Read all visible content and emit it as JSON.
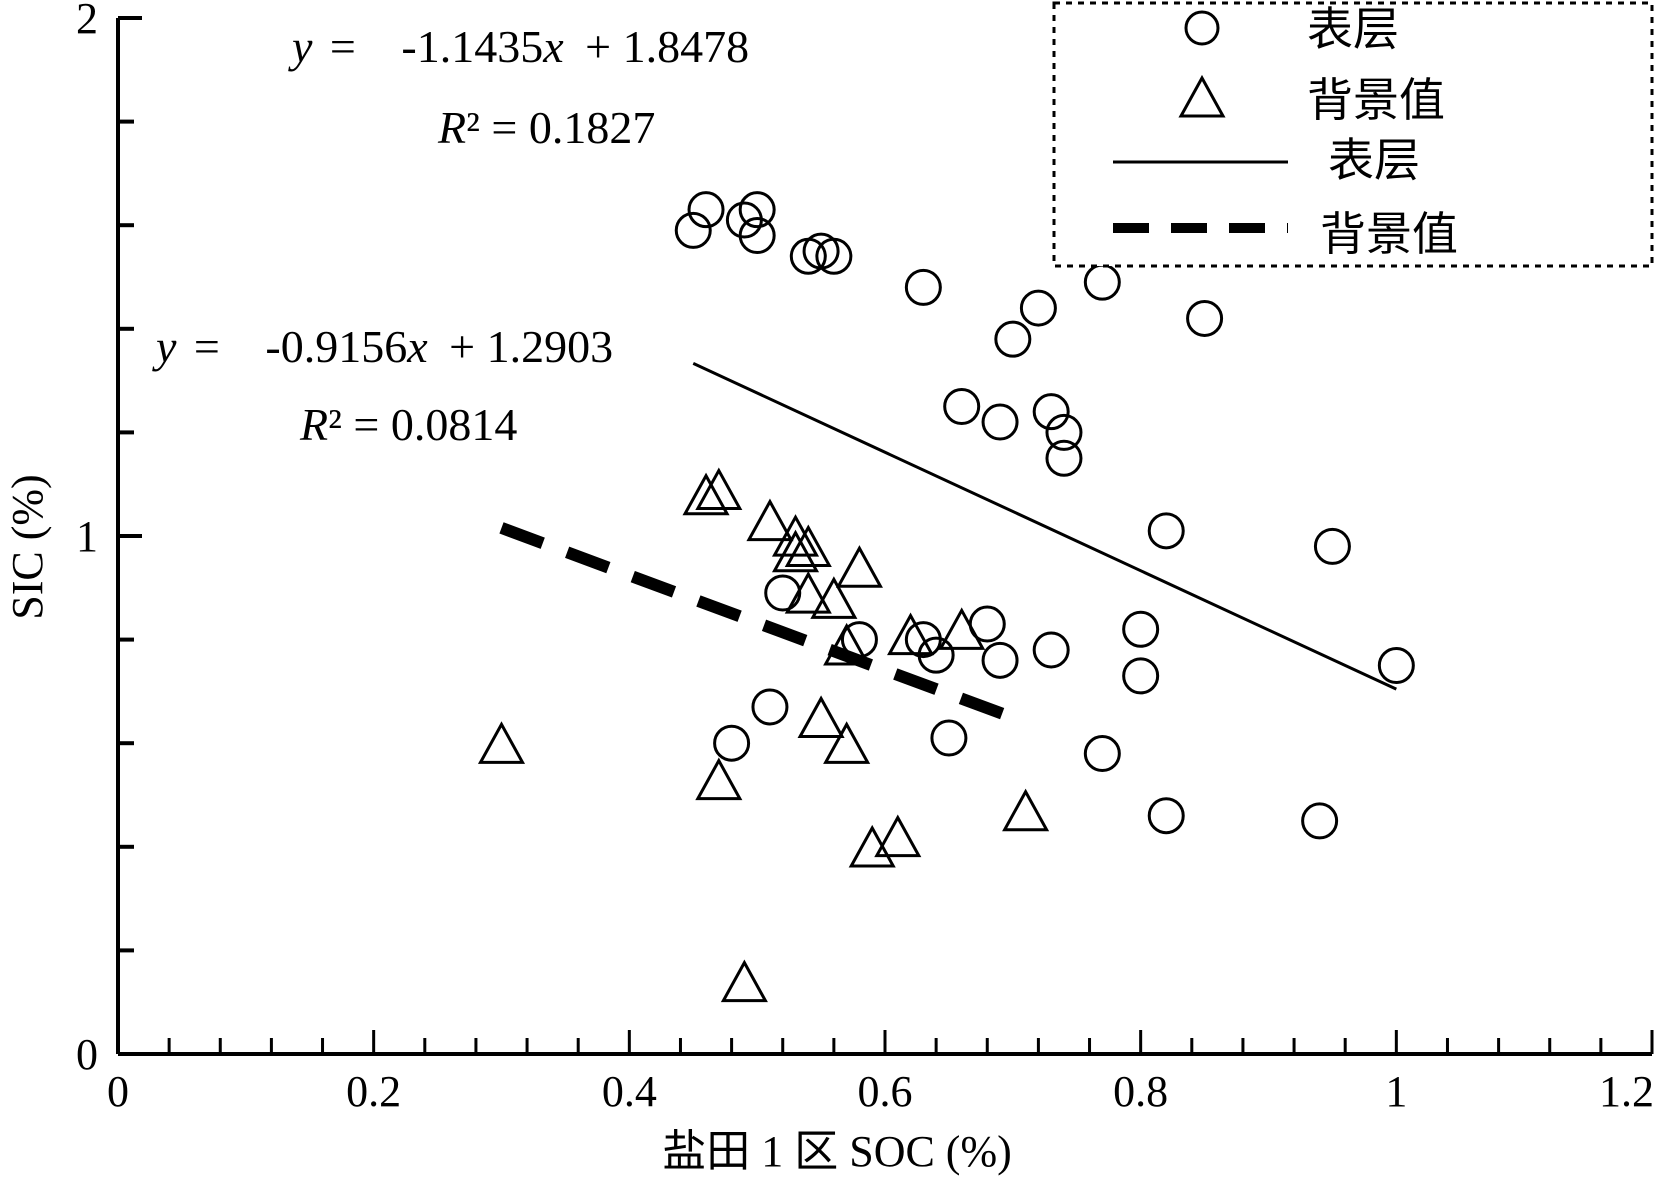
{
  "chart_data": {
    "type": "scatter",
    "xlabel": "盐田 1 区 SOC (%)",
    "ylabel": "SIC (%)",
    "xlim": [
      0,
      1.2
    ],
    "ylim": [
      0,
      2
    ],
    "x_major_ticks": [
      0,
      0.2,
      0.4,
      0.6,
      0.8,
      1,
      1.2
    ],
    "x_tick_labels": [
      "0",
      "0.2",
      "0.4",
      "0.6",
      "0.8",
      "1",
      "1.2"
    ],
    "x_minor_tick_step": 0.04,
    "y_major_ticks": [
      0,
      1,
      2
    ],
    "y_tick_labels": [
      "0",
      "1",
      "2"
    ],
    "y_minor_tick_step": 0.2,
    "grid": false,
    "legend_position": "top-right",
    "series": [
      {
        "name": "表层",
        "marker": "circle",
        "points": [
          [
            0.45,
            1.59
          ],
          [
            0.46,
            1.63
          ],
          [
            0.49,
            1.61
          ],
          [
            0.5,
            1.63
          ],
          [
            0.5,
            1.58
          ],
          [
            0.54,
            1.54
          ],
          [
            0.55,
            1.55
          ],
          [
            0.56,
            1.54
          ],
          [
            0.63,
            1.48
          ],
          [
            0.77,
            1.49
          ],
          [
            0.72,
            1.44
          ],
          [
            0.7,
            1.38
          ],
          [
            0.85,
            1.42
          ],
          [
            0.66,
            1.25
          ],
          [
            0.69,
            1.22
          ],
          [
            0.73,
            1.24
          ],
          [
            0.74,
            1.2
          ],
          [
            0.74,
            1.15
          ],
          [
            0.82,
            1.01
          ],
          [
            0.95,
            0.98
          ],
          [
            0.52,
            0.89
          ],
          [
            0.58,
            0.8
          ],
          [
            0.63,
            0.8
          ],
          [
            0.64,
            0.77
          ],
          [
            0.68,
            0.83
          ],
          [
            0.69,
            0.76
          ],
          [
            0.73,
            0.78
          ],
          [
            0.8,
            0.82
          ],
          [
            0.8,
            0.73
          ],
          [
            1.0,
            0.75
          ],
          [
            0.51,
            0.67
          ],
          [
            0.48,
            0.6
          ],
          [
            0.65,
            0.61
          ],
          [
            0.77,
            0.58
          ],
          [
            0.82,
            0.46
          ],
          [
            0.94,
            0.45
          ]
        ]
      },
      {
        "name": "背景值",
        "marker": "triangle",
        "points": [
          [
            0.46,
            1.07
          ],
          [
            0.47,
            1.08
          ],
          [
            0.51,
            1.02
          ],
          [
            0.53,
            0.99
          ],
          [
            0.54,
            0.97
          ],
          [
            0.53,
            0.96
          ],
          [
            0.54,
            0.88
          ],
          [
            0.56,
            0.87
          ],
          [
            0.58,
            0.93
          ],
          [
            0.57,
            0.78
          ],
          [
            0.62,
            0.8
          ],
          [
            0.66,
            0.81
          ],
          [
            0.55,
            0.64
          ],
          [
            0.57,
            0.59
          ],
          [
            0.3,
            0.59
          ],
          [
            0.47,
            0.52
          ],
          [
            0.71,
            0.46
          ],
          [
            0.59,
            0.39
          ],
          [
            0.61,
            0.41
          ],
          [
            0.49,
            0.13
          ]
        ]
      }
    ],
    "fits": [
      {
        "series": "表层",
        "style": "solid",
        "slope": -1.1435,
        "intercept": 1.8478,
        "x_range": [
          0.45,
          1.0
        ],
        "equation_label": {
          "y": "y",
          "eq": "=",
          "coef": "-1.1435",
          "x": "x",
          "rest": "+ 1.8478"
        },
        "r2_label": {
          "R": "R",
          "rest": "² = 0.1827"
        }
      },
      {
        "series": "背景值",
        "style": "dashed",
        "slope": -0.9156,
        "intercept": 1.2903,
        "x_range": [
          0.3,
          0.7
        ],
        "equation_label": {
          "y": "y",
          "eq": "=",
          "coef": "-0.9156",
          "x": "x",
          "rest": "+ 1.2903"
        },
        "r2_label": {
          "R": "R",
          "rest": "² = 0.0814"
        }
      }
    ],
    "legend": {
      "entries": [
        {
          "label": "表层",
          "symbol": "circle"
        },
        {
          "label": "背景值",
          "symbol": "triangle"
        },
        {
          "label": "表层",
          "symbol": "solid-line"
        },
        {
          "label": "背景值",
          "symbol": "dashed-line"
        }
      ]
    }
  }
}
